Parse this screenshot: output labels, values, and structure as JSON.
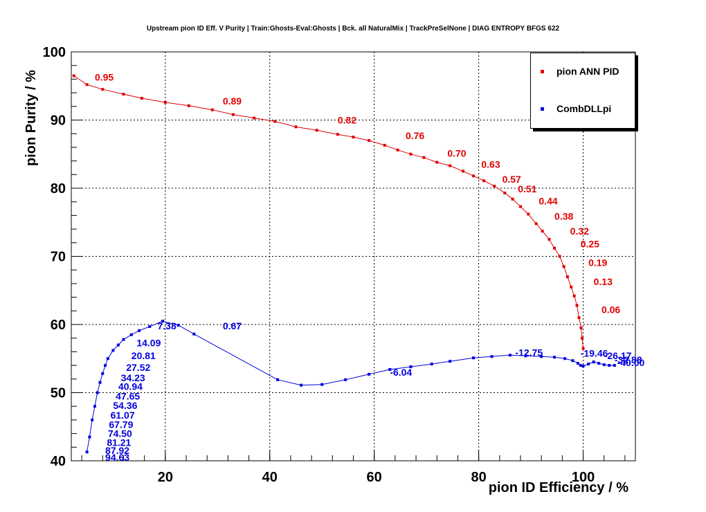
{
  "title": "Upstream pion ID Eff. V Purity | Train:Ghosts-Eval:Ghosts | Bck. all NaturalMix | TrackPreSelNone | DIAG ENTROPY BFGS 622",
  "chart_data": {
    "type": "line",
    "xlabel": "pion ID Efficiency / %",
    "ylabel": "pion Purity / %",
    "xlim": [
      2,
      110
    ],
    "ylim": [
      40,
      100
    ],
    "xticks": [
      20,
      40,
      60,
      80,
      100
    ],
    "yticks": [
      40,
      50,
      60,
      70,
      80,
      90,
      100
    ],
    "grid": true,
    "legend_position": "top-right",
    "series": [
      {
        "name": "pion ANN PID",
        "color": "#e00000",
        "x": [
          2.5,
          5,
          8,
          12,
          15.5,
          20,
          24.5,
          29,
          33,
          37,
          41,
          45,
          49,
          53,
          56,
          59,
          62,
          64.5,
          67,
          69.5,
          72,
          74.5,
          77,
          79,
          81,
          83,
          85,
          86.5,
          88,
          89.5,
          91,
          92.2,
          93.5,
          94.5,
          95.5,
          96.3,
          97,
          97.7,
          98.3,
          98.8,
          99.2,
          99.6,
          99.8,
          100
        ],
        "y": [
          96.5,
          95.2,
          94.5,
          93.8,
          93.2,
          92.6,
          92.1,
          91.5,
          90.8,
          90.3,
          89.8,
          89.0,
          88.5,
          87.9,
          87.5,
          87.0,
          86.3,
          85.6,
          85.0,
          84.5,
          83.8,
          83.3,
          82.5,
          81.8,
          81.1,
          80.3,
          79.3,
          78.4,
          77.3,
          76.2,
          74.8,
          73.7,
          72.5,
          71.2,
          70.0,
          68.5,
          67.0,
          65.5,
          64.2,
          62.8,
          61.0,
          59.5,
          58.0,
          56.5
        ],
        "labels": [
          {
            "text": "0.95",
            "x": 6.5,
            "y": 95.8
          },
          {
            "text": "0.89",
            "x": 31,
            "y": 92.3
          },
          {
            "text": "0.82",
            "x": 53,
            "y": 89.5
          },
          {
            "text": "0.76",
            "x": 66,
            "y": 87.2
          },
          {
            "text": "0.70",
            "x": 74,
            "y": 84.6
          },
          {
            "text": "0.63",
            "x": 80.5,
            "y": 83.0
          },
          {
            "text": "0.57",
            "x": 84.5,
            "y": 80.8
          },
          {
            "text": "0.51",
            "x": 87.5,
            "y": 79.4
          },
          {
            "text": "0.44",
            "x": 91.5,
            "y": 77.6
          },
          {
            "text": "0.38",
            "x": 94.5,
            "y": 75.4
          },
          {
            "text": "0.32",
            "x": 97.5,
            "y": 73.2
          },
          {
            "text": "0.25",
            "x": 99.5,
            "y": 71.3
          },
          {
            "text": "0.19",
            "x": 101,
            "y": 68.6
          },
          {
            "text": "0.13",
            "x": 102,
            "y": 65.8
          },
          {
            "text": "0.06",
            "x": 103.5,
            "y": 61.7
          }
        ]
      },
      {
        "name": "CombDLLpi",
        "color": "#0000dd",
        "x": [
          5,
          5.5,
          6,
          6.5,
          7,
          7.5,
          8,
          8.5,
          9,
          10,
          11,
          12,
          13.5,
          15,
          17,
          19.5,
          22.5,
          25.5,
          41.5,
          46,
          50,
          54.5,
          59,
          63,
          67,
          71,
          74.5,
          79,
          82.5,
          86,
          89,
          92,
          94.5,
          96.5,
          98,
          99,
          99.5,
          100,
          101,
          102,
          103,
          104,
          105,
          106
        ],
        "y": [
          41.3,
          43.5,
          46,
          48,
          50,
          51.5,
          52.8,
          54,
          55,
          56.2,
          57,
          57.8,
          58.5,
          59.1,
          59.7,
          60.5,
          59.9,
          58.6,
          51.9,
          51.1,
          51.2,
          51.9,
          52.7,
          53.4,
          53.8,
          54.2,
          54.6,
          55.1,
          55.3,
          55.5,
          55.4,
          55.3,
          55.2,
          55.0,
          54.7,
          54.3,
          54.0,
          53.9,
          54.2,
          54.5,
          54.3,
          54.1,
          54.0,
          54.0
        ],
        "labels": [
          {
            "text": "7.38",
            "x": 18.5,
            "y": 59.3
          },
          {
            "text": "0.67",
            "x": 31,
            "y": 59.3
          },
          {
            "text": "14.09",
            "x": 14.5,
            "y": 56.8
          },
          {
            "text": "20.81",
            "x": 13.5,
            "y": 54.9
          },
          {
            "text": "27.52",
            "x": 12.5,
            "y": 53.2
          },
          {
            "text": "34.23",
            "x": 11.5,
            "y": 51.7
          },
          {
            "text": "40.94",
            "x": 11,
            "y": 50.4
          },
          {
            "text": "47.65",
            "x": 10.5,
            "y": 49.0
          },
          {
            "text": "54.36",
            "x": 10,
            "y": 47.6
          },
          {
            "text": "61.07",
            "x": 9.5,
            "y": 46.2
          },
          {
            "text": "67.79",
            "x": 9.2,
            "y": 44.8
          },
          {
            "text": "74.50",
            "x": 9,
            "y": 43.5
          },
          {
            "text": "81.21",
            "x": 8.8,
            "y": 42.2
          },
          {
            "text": "87.92",
            "x": 8.5,
            "y": 41.0
          },
          {
            "text": "94.63",
            "x": 8.5,
            "y": 40.0
          },
          {
            "text": "-6.04",
            "x": 63,
            "y": 52.5
          },
          {
            "text": "-12.75",
            "x": 87,
            "y": 55.4
          },
          {
            "text": "-19.46",
            "x": 99.5,
            "y": 55.3
          },
          {
            "text": "-26.17",
            "x": 104,
            "y": 54.9
          },
          {
            "text": "-32.88",
            "x": 106,
            "y": 54.3
          },
          {
            "text": "-40.00",
            "x": 106.5,
            "y": 53.9
          }
        ]
      }
    ]
  }
}
